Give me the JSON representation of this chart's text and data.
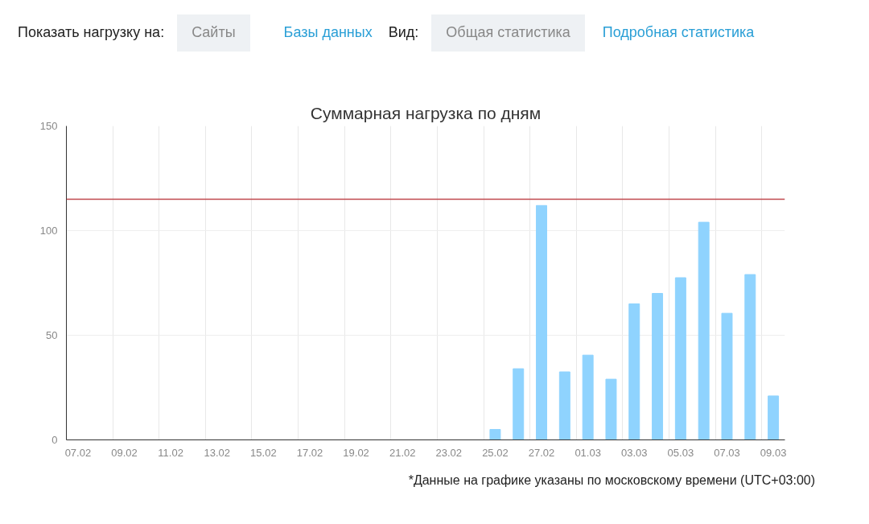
{
  "chart_data": {
    "type": "bar",
    "title": "Суммарная нагрузка по дням",
    "categories": [
      "07.02",
      null,
      "09.02",
      null,
      "11.02",
      null,
      "13.02",
      null,
      "15.02",
      null,
      "17.02",
      null,
      "19.02",
      null,
      "21.02",
      null,
      "23.02",
      null,
      "25.02",
      null,
      "27.02",
      null,
      "01.03",
      null,
      "03.03",
      null,
      "05.03",
      null,
      "07.03",
      null,
      "09.03"
    ],
    "values": [
      0,
      0,
      0,
      0,
      0,
      0,
      0,
      0,
      0,
      0,
      0,
      0,
      0,
      0,
      0,
      0,
      0,
      0,
      5,
      34,
      112,
      32.5,
      40.5,
      29,
      65,
      70,
      77.5,
      104,
      60.5,
      79,
      21
    ],
    "color": "#8fd3fe",
    "ylim": [
      0,
      150
    ],
    "yticks": [
      0,
      50,
      100,
      150
    ],
    "grid": true,
    "ref_lines": [
      {
        "axis": "y",
        "value": 115,
        "color": "#c0494d"
      }
    ],
    "annotations": [
      "Показать нагрузку на:",
      "Сайты",
      "Базы данных",
      "Вид:",
      "Общая статистика",
      "Подробная статистика",
      "*Данные на графике указаны по московскому времени (UTC+03:00)"
    ]
  }
}
